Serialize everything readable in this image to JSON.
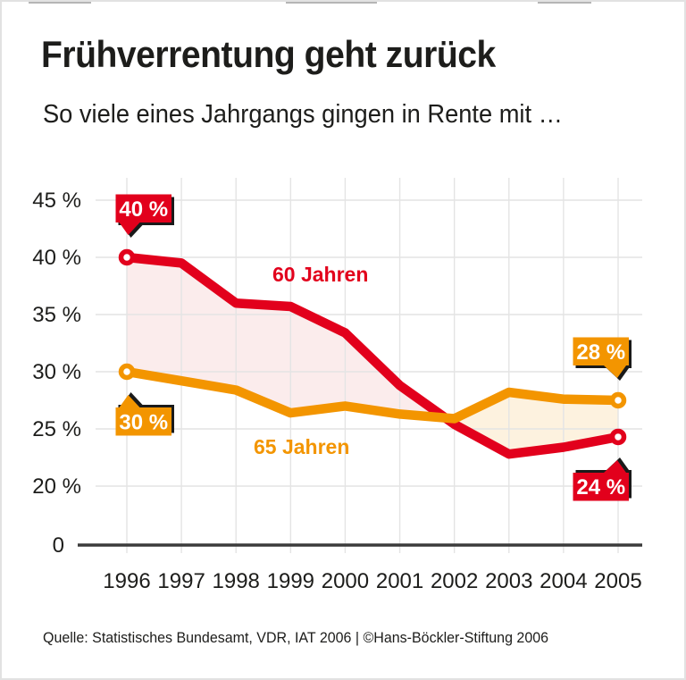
{
  "chart_data": {
    "type": "line",
    "title": "Frühverrentung geht zurück",
    "subtitle": "So viele eines Jahrgangs gingen in Rente mit …",
    "source": "Quelle: Statistisches Bundesamt, VDR, IAT 2006 | ©Hans-Böckler-Stiftung 2006",
    "x": [
      1996,
      1997,
      1998,
      1999,
      2000,
      2001,
      2002,
      2003,
      2004,
      2005
    ],
    "series": [
      {
        "name": "60 Jahren",
        "color": "#e2001c",
        "band_fill": "#fbecec",
        "values": [
          40.0,
          39.5,
          36.0,
          35.7,
          33.4,
          28.8,
          25.4,
          22.8,
          23.4,
          24.3
        ],
        "badges": [
          {
            "at": 1996,
            "text": "40 %",
            "placement": "above"
          },
          {
            "at": 2005,
            "text": "24 %",
            "placement": "below"
          }
        ]
      },
      {
        "name": "65 Jahren",
        "color": "#f39500",
        "band_fill": "#fdf2df",
        "values": [
          30.0,
          29.2,
          28.4,
          26.4,
          27.0,
          26.3,
          25.9,
          28.2,
          27.6,
          27.5
        ],
        "badges": [
          {
            "at": 1996,
            "text": "30 %",
            "placement": "below"
          },
          {
            "at": 2005,
            "text": "28 %",
            "placement": "above"
          }
        ]
      }
    ],
    "yticks": [
      {
        "value": 45,
        "label": "45 %"
      },
      {
        "value": 40,
        "label": "40 %"
      },
      {
        "value": 35,
        "label": "35 %"
      },
      {
        "value": 30,
        "label": "30 %"
      },
      {
        "value": 25,
        "label": "25 %"
      },
      {
        "value": 20,
        "label": "20 %"
      }
    ],
    "zero_label": "0",
    "axis_break": true,
    "ylim": [
      20,
      45
    ],
    "grid": true,
    "legend_position": "inline-labels",
    "colors": {
      "grid": "#e4e4e4",
      "axis": "#3b3b3b",
      "text": "#1d1d1b",
      "badge_text": "#ffffff",
      "badge_shadow": "#1a1a1a"
    }
  }
}
